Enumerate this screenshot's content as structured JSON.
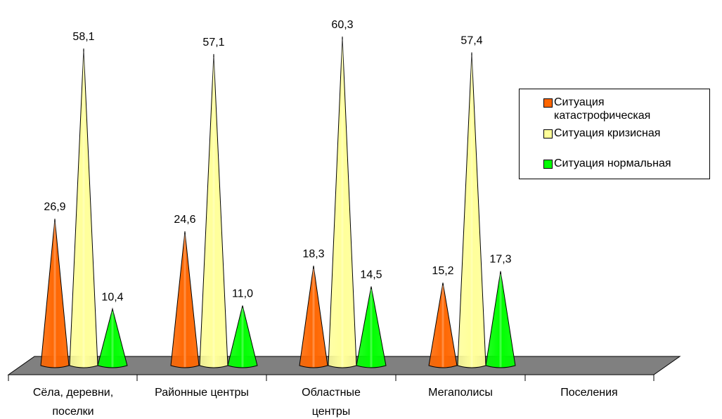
{
  "chart_data": {
    "type": "bar",
    "categories": [
      "Сёла, деревни, поселки",
      "Районные центры",
      "Областные центры",
      "Мегаполисы",
      "Поселения"
    ],
    "series": [
      {
        "name": "Ситуация катастрофическая",
        "color": "#ff6600",
        "values": [
          26.9,
          24.6,
          18.3,
          15.2,
          null
        ]
      },
      {
        "name": "Ситуация кризисная",
        "color": "#ffff99",
        "values": [
          58.1,
          57.1,
          60.3,
          57.4,
          null
        ]
      },
      {
        "name": "Ситуация нормальная",
        "color": "#00ff00",
        "values": [
          10.4,
          11.0,
          14.5,
          17.3,
          null
        ]
      }
    ],
    "data_labels": [
      [
        "26,9",
        "58,1",
        "10,4"
      ],
      [
        "24,6",
        "57,1",
        "11,0"
      ],
      [
        "18,3",
        "60,3",
        "14,5"
      ],
      [
        "15,2",
        "57,4",
        "17,3"
      ]
    ],
    "category_label_lines": [
      [
        "Сёла, деревни,",
        "поселки"
      ],
      [
        "Районные центры"
      ],
      [
        "Областные",
        "центры"
      ],
      [
        "Мегаполисы"
      ],
      [
        "Поселения"
      ]
    ],
    "ylim": [
      0,
      60.3
    ],
    "legend": {
      "position": "right",
      "items": [
        {
          "label_lines": [
            "Ситуация",
            "катастрофическая"
          ]
        },
        {
          "label_lines": [
            "Ситуация кризисная"
          ]
        },
        {
          "label_lines": [
            "Ситуация нормальная"
          ]
        }
      ]
    },
    "floor_color": "#808080",
    "style": "3d-cone"
  }
}
